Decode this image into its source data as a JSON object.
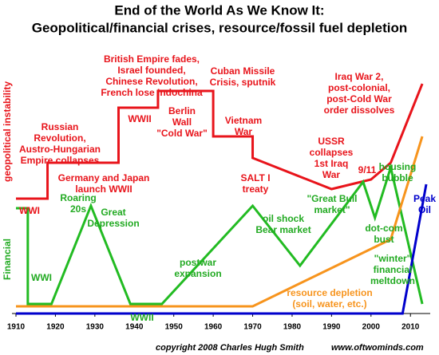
{
  "chart_data": {
    "type": "line",
    "title": "End of the World As We Know It:",
    "subtitle": "Geopolitical/financial crises, resource/fossil fuel depletion",
    "y_labels": [
      {
        "text": "geopolitical instability",
        "color": "#e8141b"
      },
      {
        "text": "Financial",
        "color": "#22aa22"
      }
    ],
    "xlim": [
      1910,
      2014
    ],
    "ylim": [
      0,
      100
    ],
    "xticks": [
      1910,
      1920,
      1930,
      1940,
      1950,
      1960,
      1970,
      1980,
      1990,
      2000,
      2010
    ],
    "series": [
      {
        "color": "#e8141b",
        "x": [
          1910,
          1918,
          1918,
          1936,
          1936,
          1946,
          1946,
          1960,
          1960,
          1970,
          1970,
          1990,
          2000,
          2005,
          2013
        ],
        "values": [
          48,
          48,
          63,
          63,
          86,
          86,
          93,
          93,
          74,
          74,
          65,
          52,
          56,
          63,
          96
        ]
      },
      {
        "color": "#22bb22",
        "x": [
          1910,
          1913,
          1913,
          1919,
          1929,
          1939,
          1947,
          1970,
          1982,
          1998,
          2001,
          2005,
          2013
        ],
        "values": [
          44,
          44,
          4,
          4,
          45,
          4,
          4,
          45,
          20,
          55,
          40,
          61,
          4
        ]
      },
      {
        "color": "#f7941d",
        "x": [
          1910,
          1970,
          1990,
          2005,
          2013
        ],
        "values": [
          3,
          3,
          19,
          31,
          74
        ]
      },
      {
        "color": "#0000cc",
        "x": [
          1910,
          2008,
          2014
        ],
        "values": [
          0,
          0,
          54
        ]
      }
    ],
    "annotations": [
      {
        "lines": [
          "WWI"
        ],
        "color": "#e8141b"
      },
      {
        "lines": [
          "Russian",
          "Revolution,",
          "Austro-Hungarian",
          "Empire collapses"
        ],
        "color": "#e8141b"
      },
      {
        "lines": [
          "Germany and Japan",
          "launch WWII"
        ],
        "color": "#e8141b"
      },
      {
        "lines": [
          "WWII"
        ],
        "color": "#e8141b"
      },
      {
        "lines": [
          "British Empire fades,",
          "Israel founded,",
          "Chinese Revolution,",
          "French lose Indochina"
        ],
        "color": "#e8141b"
      },
      {
        "lines": [
          "Berlin",
          "Wall",
          "\"Cold War\""
        ],
        "color": "#e8141b"
      },
      {
        "lines": [
          "Cuban Missile",
          "Crisis, sputnik"
        ],
        "color": "#e8141b"
      },
      {
        "lines": [
          "Vietnam",
          "War"
        ],
        "color": "#e8141b"
      },
      {
        "lines": [
          "SALT I",
          "treaty"
        ],
        "color": "#e8141b"
      },
      {
        "lines": [
          "USSR",
          "collapses",
          "1st Iraq",
          "War"
        ],
        "color": "#e8141b"
      },
      {
        "lines": [
          "9/11"
        ],
        "color": "#e8141b"
      },
      {
        "lines": [
          "Iraq War 2,",
          "post-colonial,",
          "post-Cold War",
          "order dissolves"
        ],
        "color": "#e8141b"
      },
      {
        "lines": [
          "WWI"
        ],
        "color": "#22aa22"
      },
      {
        "lines": [
          "Roaring",
          "20s"
        ],
        "color": "#22aa22"
      },
      {
        "lines": [
          "Great",
          "Depression"
        ],
        "color": "#22aa22"
      },
      {
        "lines": [
          "WWII"
        ],
        "color": "#22aa22"
      },
      {
        "lines": [
          "postwar",
          "expansion"
        ],
        "color": "#22aa22"
      },
      {
        "lines": [
          "oil shock",
          "Bear market"
        ],
        "color": "#22aa22"
      },
      {
        "lines": [
          "\"Great Bull",
          "market\""
        ],
        "color": "#22aa22"
      },
      {
        "lines": [
          "housing",
          "bubble"
        ],
        "color": "#22aa22"
      },
      {
        "lines": [
          "dot-com",
          "bust"
        ],
        "color": "#22aa22"
      },
      {
        "lines": [
          "\"winter\"",
          "financial",
          "meltdown"
        ],
        "color": "#22aa22"
      },
      {
        "lines": [
          "resource depletion",
          "(soil, water, etc.)"
        ],
        "color": "#f7941d"
      },
      {
        "lines": [
          "Peak",
          "Oil"
        ],
        "color": "#0000cc"
      }
    ],
    "footer": [
      "copyright 2008 Charles Hugh Smith",
      "www.oftwominds.com"
    ]
  }
}
